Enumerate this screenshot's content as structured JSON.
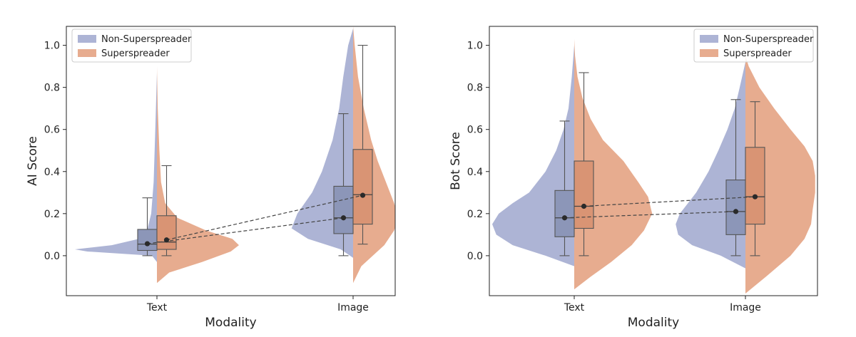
{
  "chart_data": [
    {
      "type": "violin",
      "ylabel": "AI Score",
      "xlabel": "Modality",
      "categories": [
        "Text",
        "Image"
      ],
      "ylim": [
        -0.19,
        1.09
      ],
      "yticks": [
        "0.0",
        "0.2",
        "0.4",
        "0.6",
        "0.8",
        "1.0"
      ],
      "ytick_values": [
        0.0,
        0.2,
        0.4,
        0.6,
        0.8,
        1.0
      ],
      "legend": {
        "placement": "top-left",
        "entries": [
          "Non-Superspreader",
          "Superspreader"
        ]
      },
      "series": [
        {
          "name": "Non-Superspreader",
          "color": "#a9b0d3",
          "box_color": "#8c96b8",
          "groups": [
            {
              "category": "Text",
              "box": {
                "wlo": 0.0,
                "q1": 0.025,
                "median": 0.055,
                "q3": 0.125,
                "whi": 0.275
              },
              "mean": 0.057,
              "violin": [
                [
                  -0.03,
                  0.0
                ],
                [
                  0.0,
                  0.06
                ],
                [
                  0.02,
                  0.85
                ],
                [
                  0.03,
                  1.0
                ],
                [
                  0.05,
                  0.55
                ],
                [
                  0.08,
                  0.22
                ],
                [
                  0.12,
                  0.12
                ],
                [
                  0.2,
                  0.07
                ],
                [
                  0.35,
                  0.04
                ],
                [
                  0.6,
                  0.02
                ],
                [
                  0.87,
                  0.0
                ]
              ]
            },
            {
              "category": "Image",
              "box": {
                "wlo": 0.0,
                "q1": 0.105,
                "median": 0.18,
                "q3": 0.33,
                "whi": 0.675
              },
              "mean": 0.18,
              "violin": [
                [
                  -0.01,
                  0.0
                ],
                [
                  0.03,
                  0.15
                ],
                [
                  0.08,
                  0.55
                ],
                [
                  0.13,
                  0.75
                ],
                [
                  0.2,
                  0.68
                ],
                [
                  0.3,
                  0.5
                ],
                [
                  0.4,
                  0.38
                ],
                [
                  0.55,
                  0.25
                ],
                [
                  0.7,
                  0.17
                ],
                [
                  0.85,
                  0.12
                ],
                [
                  1.0,
                  0.06
                ],
                [
                  1.08,
                  0.0
                ]
              ]
            }
          ]
        },
        {
          "name": "Superspreader",
          "color": "#e6a889",
          "box_color": "#d99474",
          "groups": [
            {
              "category": "Text",
              "box": {
                "wlo": 0.0,
                "q1": 0.03,
                "median": 0.065,
                "q3": 0.19,
                "whi": 0.428
              },
              "mean": 0.075,
              "violin": [
                [
                  -0.13,
                  0.0
                ],
                [
                  -0.08,
                  0.15
                ],
                [
                  -0.03,
                  0.55
                ],
                [
                  0.02,
                  0.9
                ],
                [
                  0.05,
                  1.0
                ],
                [
                  0.08,
                  0.92
                ],
                [
                  0.12,
                  0.6
                ],
                [
                  0.18,
                  0.25
                ],
                [
                  0.25,
                  0.1
                ],
                [
                  0.35,
                  0.05
                ],
                [
                  0.5,
                  0.03
                ],
                [
                  0.7,
                  0.01
                ],
                [
                  0.9,
                  0.0
                ]
              ]
            },
            {
              "category": "Image",
              "box": {
                "wlo": 0.055,
                "q1": 0.15,
                "median": 0.29,
                "q3": 0.505,
                "whi": 1.0
              },
              "mean": 0.287,
              "violin": [
                [
                  -0.13,
                  0.0
                ],
                [
                  -0.05,
                  0.1
                ],
                [
                  0.05,
                  0.38
                ],
                [
                  0.12,
                  0.5
                ],
                [
                  0.18,
                  0.55
                ],
                [
                  0.25,
                  0.5
                ],
                [
                  0.35,
                  0.4
                ],
                [
                  0.45,
                  0.3
                ],
                [
                  0.55,
                  0.22
                ],
                [
                  0.7,
                  0.13
                ],
                [
                  0.85,
                  0.06
                ],
                [
                  1.0,
                  0.02
                ],
                [
                  1.09,
                  0.0
                ]
              ]
            }
          ]
        }
      ]
    },
    {
      "type": "violin",
      "ylabel": "Bot Score",
      "xlabel": "Modality",
      "categories": [
        "Text",
        "Image"
      ],
      "ylim": [
        -0.19,
        1.09
      ],
      "yticks": [
        "0.0",
        "0.2",
        "0.4",
        "0.6",
        "0.8",
        "1.0"
      ],
      "ytick_values": [
        0.0,
        0.2,
        0.4,
        0.6,
        0.8,
        1.0
      ],
      "legend": {
        "placement": "top-right",
        "entries": [
          "Non-Superspreader",
          "Superspreader"
        ]
      },
      "series": [
        {
          "name": "Non-Superspreader",
          "color": "#a9b0d3",
          "box_color": "#8c96b8",
          "groups": [
            {
              "category": "Text",
              "box": {
                "wlo": 0.0,
                "q1": 0.09,
                "median": 0.18,
                "q3": 0.31,
                "whi": 0.64
              },
              "mean": 0.18,
              "violin": [
                [
                  -0.05,
                  0.0
                ],
                [
                  0.0,
                  0.35
                ],
                [
                  0.05,
                  0.75
                ],
                [
                  0.1,
                  0.95
                ],
                [
                  0.15,
                  1.0
                ],
                [
                  0.2,
                  0.92
                ],
                [
                  0.25,
                  0.75
                ],
                [
                  0.3,
                  0.55
                ],
                [
                  0.4,
                  0.35
                ],
                [
                  0.5,
                  0.22
                ],
                [
                  0.6,
                  0.13
                ],
                [
                  0.7,
                  0.07
                ],
                [
                  0.85,
                  0.03
                ],
                [
                  1.0,
                  0.0
                ]
              ]
            },
            {
              "category": "Image",
              "box": {
                "wlo": 0.0,
                "q1": 0.1,
                "median": 0.21,
                "q3": 0.36,
                "whi": 0.742
              },
              "mean": 0.21,
              "violin": [
                [
                  -0.06,
                  0.0
                ],
                [
                  0.0,
                  0.3
                ],
                [
                  0.05,
                  0.65
                ],
                [
                  0.1,
                  0.82
                ],
                [
                  0.15,
                  0.85
                ],
                [
                  0.2,
                  0.8
                ],
                [
                  0.25,
                  0.7
                ],
                [
                  0.3,
                  0.6
                ],
                [
                  0.4,
                  0.45
                ],
                [
                  0.5,
                  0.33
                ],
                [
                  0.6,
                  0.22
                ],
                [
                  0.7,
                  0.13
                ],
                [
                  0.8,
                  0.07
                ],
                [
                  0.92,
                  0.0
                ]
              ]
            }
          ]
        },
        {
          "name": "Superspreader",
          "color": "#e6a889",
          "box_color": "#d99474",
          "groups": [
            {
              "category": "Text",
              "box": {
                "wlo": 0.0,
                "q1": 0.13,
                "median": 0.235,
                "q3": 0.45,
                "whi": 0.87
              },
              "mean": 0.235,
              "violin": [
                [
                  -0.16,
                  0.0
                ],
                [
                  -0.1,
                  0.2
                ],
                [
                  -0.03,
                  0.45
                ],
                [
                  0.05,
                  0.7
                ],
                [
                  0.12,
                  0.85
                ],
                [
                  0.2,
                  0.95
                ],
                [
                  0.28,
                  0.9
                ],
                [
                  0.35,
                  0.78
                ],
                [
                  0.45,
                  0.6
                ],
                [
                  0.55,
                  0.35
                ],
                [
                  0.65,
                  0.2
                ],
                [
                  0.75,
                  0.1
                ],
                [
                  0.85,
                  0.04
                ],
                [
                  0.95,
                  0.01
                ],
                [
                  1.03,
                  0.0
                ]
              ]
            },
            {
              "category": "Image",
              "box": {
                "wlo": 0.0,
                "q1": 0.15,
                "median": 0.28,
                "q3": 0.515,
                "whi": 0.732
              },
              "mean": 0.28,
              "violin": [
                [
                  -0.18,
                  0.0
                ],
                [
                  -0.1,
                  0.25
                ],
                [
                  0.0,
                  0.55
                ],
                [
                  0.08,
                  0.72
                ],
                [
                  0.15,
                  0.8
                ],
                [
                  0.22,
                  0.82
                ],
                [
                  0.3,
                  0.85
                ],
                [
                  0.38,
                  0.85
                ],
                [
                  0.45,
                  0.82
                ],
                [
                  0.52,
                  0.72
                ],
                [
                  0.6,
                  0.55
                ],
                [
                  0.7,
                  0.35
                ],
                [
                  0.8,
                  0.17
                ],
                [
                  0.9,
                  0.04
                ],
                [
                  0.95,
                  0.0
                ]
              ]
            }
          ]
        }
      ]
    }
  ]
}
